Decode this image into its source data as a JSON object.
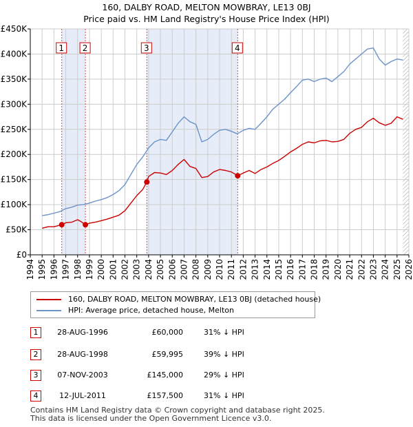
{
  "title": "160, DALBY ROAD, MELTON MOWBRAY, LE13 0BJ",
  "subtitle": "Price paid vs. HM Land Registry's House Price Index (HPI)",
  "chart_data": {
    "type": "line",
    "xlim": [
      1994,
      2026
    ],
    "ylim": [
      0,
      450000
    ],
    "x_ticks": [
      1994,
      1995,
      1996,
      1997,
      1998,
      1999,
      2000,
      2001,
      2002,
      2003,
      2004,
      2005,
      2006,
      2007,
      2008,
      2009,
      2010,
      2011,
      2012,
      2013,
      2014,
      2015,
      2016,
      2017,
      2018,
      2019,
      2020,
      2021,
      2022,
      2023,
      2024,
      2025,
      2026
    ],
    "y_ticks": [
      {
        "value": 0,
        "label": "£0"
      },
      {
        "value": 50000,
        "label": "£50K"
      },
      {
        "value": 100000,
        "label": "£100K"
      },
      {
        "value": 150000,
        "label": "£150K"
      },
      {
        "value": 200000,
        "label": "£200K"
      },
      {
        "value": 250000,
        "label": "£250K"
      },
      {
        "value": 300000,
        "label": "£300K"
      },
      {
        "value": 350000,
        "label": "£350K"
      },
      {
        "value": 400000,
        "label": "£400K"
      },
      {
        "value": 450000,
        "label": "£450K"
      }
    ],
    "grid": true,
    "data_range": [
      1995.0,
      2025.5
    ],
    "shaded_spans": [
      [
        1996.66,
        1998.66
      ],
      [
        2003.85,
        2011.53
      ]
    ],
    "future_hatch_from": 2025.5,
    "series": [
      {
        "name": "160, DALBY ROAD, MELTON MOWBRAY, LE13 0BJ (detached house)",
        "color": "#cc0000",
        "x": [
          1995.0,
          1995.5,
          1996.0,
          1996.66,
          1997.0,
          1997.5,
          1998.0,
          1998.3,
          1998.66,
          1999.0,
          1999.5,
          2000.0,
          2000.5,
          2001.0,
          2001.5,
          2002.0,
          2002.5,
          2003.0,
          2003.5,
          2003.85,
          2004.0,
          2004.5,
          2005.0,
          2005.5,
          2006.0,
          2006.5,
          2007.0,
          2007.5,
          2008.0,
          2008.5,
          2009.0,
          2009.5,
          2010.0,
          2010.5,
          2011.0,
          2011.53,
          2012.0,
          2012.5,
          2013.0,
          2013.5,
          2014.0,
          2014.5,
          2015.0,
          2015.5,
          2016.0,
          2016.5,
          2017.0,
          2017.5,
          2018.0,
          2018.5,
          2019.0,
          2019.5,
          2020.0,
          2020.5,
          2021.0,
          2021.5,
          2022.0,
          2022.5,
          2023.0,
          2023.5,
          2024.0,
          2024.5,
          2025.0,
          2025.5
        ],
        "values": [
          53000,
          56000,
          56000,
          60000,
          64000,
          65000,
          70000,
          66000,
          59995,
          63000,
          65000,
          68000,
          71000,
          75000,
          79000,
          88000,
          103000,
          118000,
          130000,
          145000,
          156000,
          164000,
          163000,
          160000,
          168000,
          180000,
          190000,
          176000,
          172000,
          154000,
          156000,
          165000,
          170000,
          168000,
          165000,
          157500,
          163000,
          168000,
          162000,
          170000,
          175000,
          182000,
          188000,
          196000,
          205000,
          212000,
          220000,
          225000,
          223000,
          227000,
          228000,
          225000,
          226000,
          230000,
          242000,
          250000,
          254000,
          265000,
          272000,
          263000,
          258000,
          262000,
          275000,
          270000
        ]
      },
      {
        "name": "HPI: Average price, detached house, Melton",
        "color": "#6b93c9",
        "x": [
          1995.0,
          1995.5,
          1996.0,
          1996.5,
          1997.0,
          1997.5,
          1998.0,
          1998.5,
          1999.0,
          1999.5,
          2000.0,
          2000.5,
          2001.0,
          2001.5,
          2002.0,
          2002.5,
          2003.0,
          2003.5,
          2004.0,
          2004.5,
          2005.0,
          2005.5,
          2006.0,
          2006.5,
          2007.0,
          2007.5,
          2008.0,
          2008.5,
          2009.0,
          2009.5,
          2010.0,
          2010.5,
          2011.0,
          2011.5,
          2012.0,
          2012.5,
          2013.0,
          2013.5,
          2014.0,
          2014.5,
          2015.0,
          2015.5,
          2016.0,
          2016.5,
          2017.0,
          2017.5,
          2018.0,
          2018.5,
          2019.0,
          2019.5,
          2020.0,
          2020.5,
          2021.0,
          2021.5,
          2022.0,
          2022.5,
          2023.0,
          2023.5,
          2024.0,
          2024.5,
          2025.0,
          2025.5
        ],
        "values": [
          78000,
          80000,
          83000,
          86000,
          92000,
          95000,
          99000,
          100000,
          103000,
          107000,
          110000,
          114000,
          120000,
          128000,
          140000,
          160000,
          180000,
          195000,
          213000,
          225000,
          230000,
          228000,
          245000,
          262000,
          275000,
          265000,
          260000,
          225000,
          230000,
          240000,
          248000,
          250000,
          246000,
          241000,
          248000,
          252000,
          250000,
          262000,
          275000,
          290000,
          300000,
          310000,
          323000,
          335000,
          348000,
          350000,
          345000,
          350000,
          352000,
          345000,
          355000,
          365000,
          380000,
          390000,
          400000,
          410000,
          412000,
          390000,
          378000,
          385000,
          390000,
          388000
        ]
      }
    ],
    "sales": [
      {
        "label": "1",
        "x": 1996.66,
        "value": 60000
      },
      {
        "label": "2",
        "x": 1998.66,
        "value": 59995
      },
      {
        "label": "3",
        "x": 2003.85,
        "value": 145000
      },
      {
        "label": "4",
        "x": 2011.53,
        "value": 157500
      }
    ]
  },
  "legend": {
    "property_label": "160, DALBY ROAD, MELTON MOWBRAY, LE13 0BJ (detached house)",
    "hpi_label": "HPI: Average price, detached house, Melton"
  },
  "transactions": [
    {
      "num": "1",
      "date": "28-AUG-1996",
      "price": "£60,000",
      "hpi": "31% ↓ HPI"
    },
    {
      "num": "2",
      "date": "28-AUG-1998",
      "price": "£59,995",
      "hpi": "39% ↓ HPI"
    },
    {
      "num": "3",
      "date": "07-NOV-2003",
      "price": "£145,000",
      "hpi": "29% ↓ HPI"
    },
    {
      "num": "4",
      "date": "12-JUL-2011",
      "price": "£157,500",
      "hpi": "31% ↓ HPI"
    }
  ],
  "footer": {
    "line1": "Contains HM Land Registry data © Crown copyright and database right 2025.",
    "line2": "This data is licensed under the Open Government Licence v3.0."
  },
  "colors": {
    "property": "#cc0000",
    "hpi": "#6b93c9",
    "shade": "#e6ecf8",
    "grid": "#cccccc"
  }
}
